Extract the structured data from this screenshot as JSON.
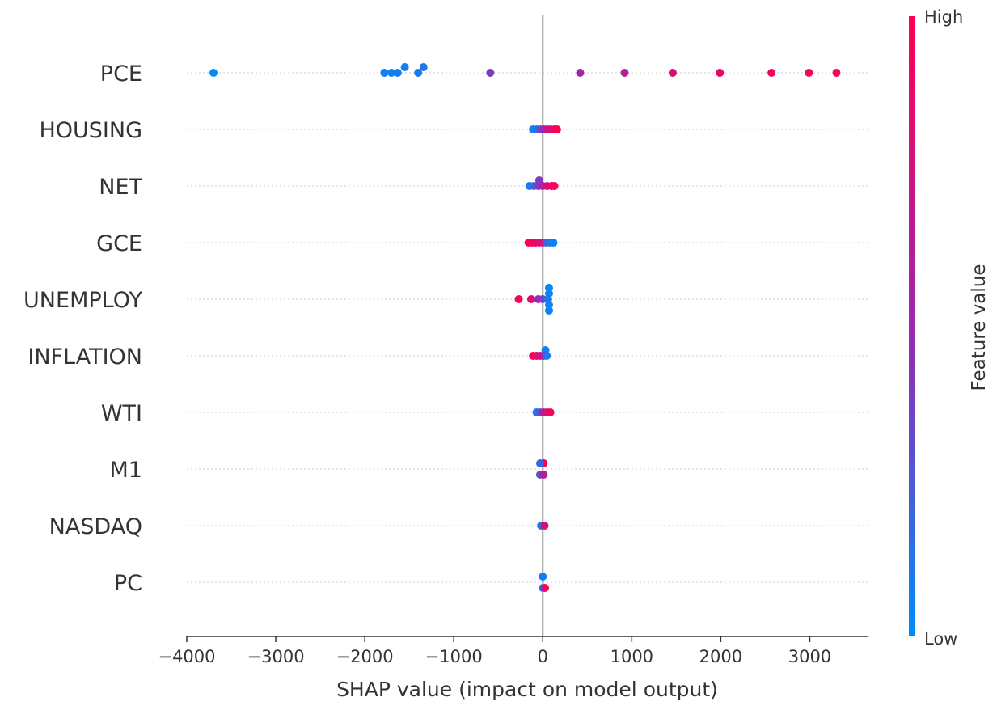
{
  "chart_data": {
    "type": "scatter",
    "xlabel": "SHAP value (impact on model output)",
    "xlim": [
      -4000,
      3650
    ],
    "xticks": [
      -4000,
      -3000,
      -2000,
      -1000,
      0,
      1000,
      2000,
      3000
    ],
    "xtick_labels": [
      "−4000",
      "−3000",
      "−2000",
      "−1000",
      "0",
      "1000",
      "2000",
      "3000"
    ],
    "colorbar": {
      "title": "Feature value",
      "high_label": "High",
      "low_label": "Low",
      "low_color": "#008bfb",
      "mid_color": "#9c27b0",
      "high_color": "#ff0052"
    },
    "zero_line_color": "#999999",
    "features": [
      {
        "name": "PCE",
        "points": [
          {
            "x": -3700,
            "v": 0.0
          },
          {
            "x": -1780,
            "v": 0.05
          },
          {
            "x": -1700,
            "v": 0.06
          },
          {
            "x": -1630,
            "v": 0.08
          },
          {
            "x": -1550,
            "v": 0.07,
            "j": -1
          },
          {
            "x": -1400,
            "v": 0.1
          },
          {
            "x": -1340,
            "v": 0.1,
            "j": -1
          },
          {
            "x": -590,
            "v": 0.4
          },
          {
            "x": 420,
            "v": 0.55
          },
          {
            "x": 920,
            "v": 0.6
          },
          {
            "x": 1460,
            "v": 0.8
          },
          {
            "x": 1990,
            "v": 0.88
          },
          {
            "x": 2570,
            "v": 0.93
          },
          {
            "x": 2990,
            "v": 0.97
          },
          {
            "x": 3300,
            "v": 1.0
          }
        ]
      },
      {
        "name": "HOUSING",
        "points": [
          {
            "x": -110,
            "v": 0.05
          },
          {
            "x": -70,
            "v": 0.1
          },
          {
            "x": -30,
            "v": 0.3
          },
          {
            "x": 10,
            "v": 0.5
          },
          {
            "x": 50,
            "v": 0.7
          },
          {
            "x": 90,
            "v": 0.8
          },
          {
            "x": 130,
            "v": 0.95
          },
          {
            "x": 160,
            "v": 1.0
          }
        ]
      },
      {
        "name": "NET",
        "points": [
          {
            "x": -40,
            "v": 0.4,
            "j": -1
          },
          {
            "x": -150,
            "v": 0.05
          },
          {
            "x": -100,
            "v": 0.2
          },
          {
            "x": -50,
            "v": 0.4
          },
          {
            "x": 0,
            "v": 0.6
          },
          {
            "x": 50,
            "v": 0.8
          },
          {
            "x": 100,
            "v": 0.9
          },
          {
            "x": 130,
            "v": 1.0
          }
        ]
      },
      {
        "name": "GCE",
        "points": [
          {
            "x": -160,
            "v": 1.0
          },
          {
            "x": -120,
            "v": 0.95
          },
          {
            "x": -80,
            "v": 0.9
          },
          {
            "x": -40,
            "v": 0.85
          },
          {
            "x": 0,
            "v": 0.75
          },
          {
            "x": 40,
            "v": 0.2
          },
          {
            "x": 80,
            "v": 0.1
          },
          {
            "x": 120,
            "v": 0.05
          }
        ]
      },
      {
        "name": "UNEMPLOY",
        "points": [
          {
            "x": 70,
            "v": 0.02,
            "j": -2
          },
          {
            "x": 70,
            "v": 0.03,
            "j": -1
          },
          {
            "x": 70,
            "v": 0.05,
            "j": 1
          },
          {
            "x": 70,
            "v": 0.04,
            "j": 2
          },
          {
            "x": -270,
            "v": 1.0
          },
          {
            "x": -130,
            "v": 0.85
          },
          {
            "x": -50,
            "v": 0.5
          },
          {
            "x": 0,
            "v": 0.35
          },
          {
            "x": 60,
            "v": 0.1
          }
        ]
      },
      {
        "name": "INFLATION",
        "points": [
          {
            "x": 30,
            "v": 0.05,
            "j": -1
          },
          {
            "x": -110,
            "v": 0.95
          },
          {
            "x": -70,
            "v": 0.9
          },
          {
            "x": -30,
            "v": 0.8
          },
          {
            "x": 10,
            "v": 0.5
          },
          {
            "x": 45,
            "v": 0.1
          }
        ]
      },
      {
        "name": "WTI",
        "points": [
          {
            "x": -70,
            "v": 0.1
          },
          {
            "x": -30,
            "v": 0.3
          },
          {
            "x": 10,
            "v": 0.6
          },
          {
            "x": 50,
            "v": 0.8
          },
          {
            "x": 85,
            "v": 0.95
          }
        ]
      },
      {
        "name": "M1",
        "points": [
          {
            "x": 10,
            "v": 1.0,
            "j": -1
          },
          {
            "x": -30,
            "v": 0.2,
            "j": -1
          },
          {
            "x": -30,
            "v": 0.3,
            "j": 1
          },
          {
            "x": 10,
            "v": 0.6,
            "j": 1
          }
        ]
      },
      {
        "name": "NASDAQ",
        "points": [
          {
            "x": -20,
            "v": 0.1
          },
          {
            "x": 20,
            "v": 0.8
          }
        ]
      },
      {
        "name": "PC",
        "points": [
          {
            "x": 0,
            "v": 0.05,
            "j": -1
          },
          {
            "x": 0,
            "v": 0.1,
            "j": 1
          },
          {
            "x": 25,
            "v": 0.95,
            "j": 1
          }
        ]
      }
    ]
  }
}
